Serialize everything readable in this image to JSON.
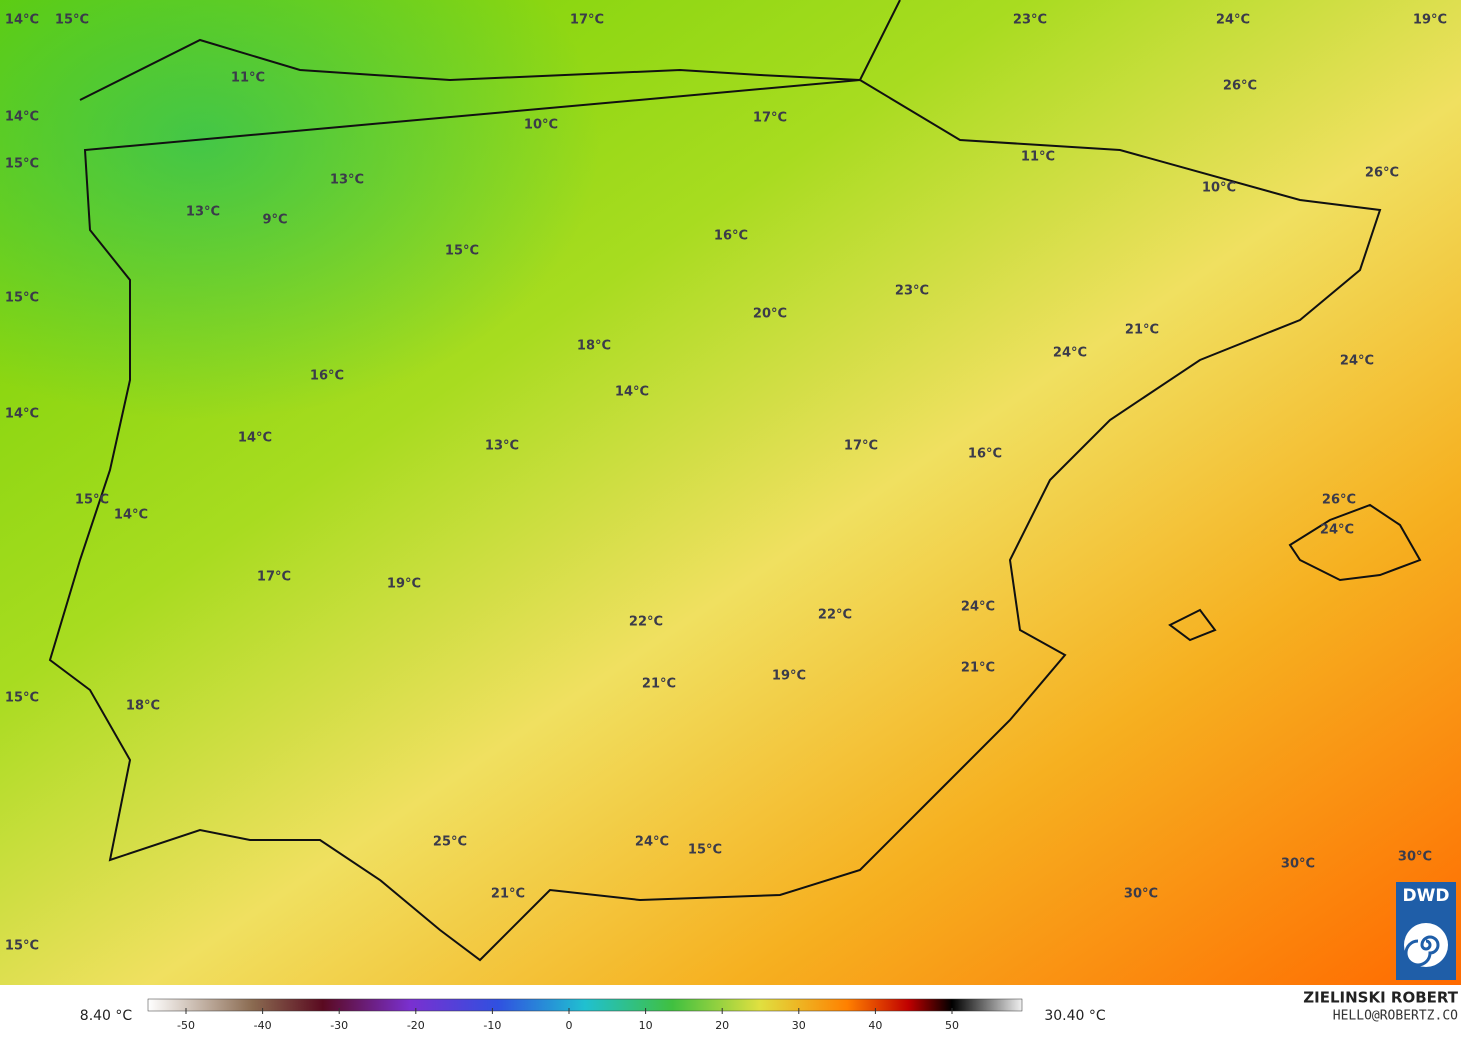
{
  "map": {
    "labels": [
      "14°C",
      "15°C",
      "17°C",
      "23°C",
      "24°C",
      "19°C",
      "11°C",
      "26°C",
      "14°C",
      "10°C",
      "17°C",
      "15°C",
      "11°C",
      "10°C",
      "26°C",
      "13°C",
      "13°C",
      "9°C",
      "16°C",
      "15°C",
      "23°C",
      "15°C",
      "20°C",
      "21°C",
      "18°C",
      "24°C",
      "24°C",
      "16°C",
      "14°C",
      "14°C",
      "14°C",
      "13°C",
      "17°C",
      "16°C",
      "15°C",
      "26°C",
      "14°C",
      "24°C",
      "17°C",
      "19°C",
      "24°C",
      "22°C",
      "22°C",
      "21°C",
      "19°C",
      "21°C",
      "15°C",
      "18°C",
      "25°C",
      "24°C",
      "15°C",
      "30°C",
      "30°C",
      "30°C",
      "21°C",
      "15°C"
    ],
    "logo": "DWD"
  },
  "colorbar": {
    "min_label": "8.40 °C",
    "max_label": "30.40 °C",
    "ticks": [
      -50,
      -40,
      -30,
      -20,
      -10,
      0,
      10,
      20,
      30,
      40,
      50
    ]
  },
  "credits": {
    "author": "ZIELINSKI ROBERT",
    "contact": "HELLO@ROBERTZ.CO"
  }
}
